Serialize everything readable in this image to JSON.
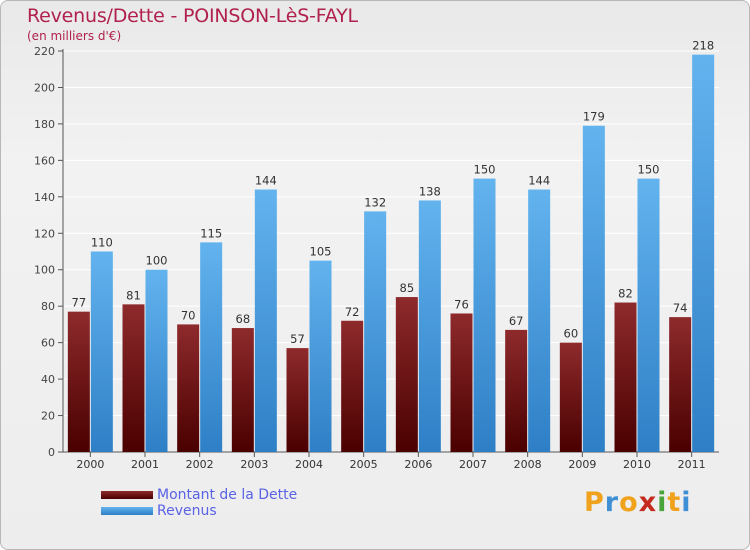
{
  "chart_data": {
    "type": "bar",
    "title": "Revenus/Dette - POINSON-LèS-FAYL",
    "subtitle": "(en milliers d'€)",
    "xlabel": "",
    "ylabel": "",
    "ylim": [
      0,
      220
    ],
    "yticks": [
      0,
      20,
      40,
      60,
      80,
      100,
      120,
      140,
      160,
      180,
      200,
      220
    ],
    "grid": true,
    "categories": [
      "2000",
      "2001",
      "2002",
      "2003",
      "2004",
      "2005",
      "2006",
      "2007",
      "2008",
      "2009",
      "2010",
      "2011"
    ],
    "series": [
      {
        "name": "Montant de la Dette",
        "color": "#7a1a1a",
        "values": [
          77,
          81,
          70,
          68,
          57,
          72,
          85,
          76,
          67,
          60,
          82,
          74
        ]
      },
      {
        "name": "Revenus",
        "color": "#3a95dd",
        "values": [
          110,
          100,
          115,
          144,
          105,
          132,
          138,
          150,
          144,
          179,
          150,
          218
        ]
      }
    ],
    "legend_position": "bottom-left"
  },
  "logo": {
    "letters": [
      "P",
      "r",
      "o",
      "x",
      "i",
      "t",
      "i"
    ],
    "colors": [
      "#f0a21c",
      "#3f8fd6",
      "#f0a21c",
      "#c52a1e",
      "#49a43c",
      "#f0a21c",
      "#3f8fd6"
    ]
  }
}
